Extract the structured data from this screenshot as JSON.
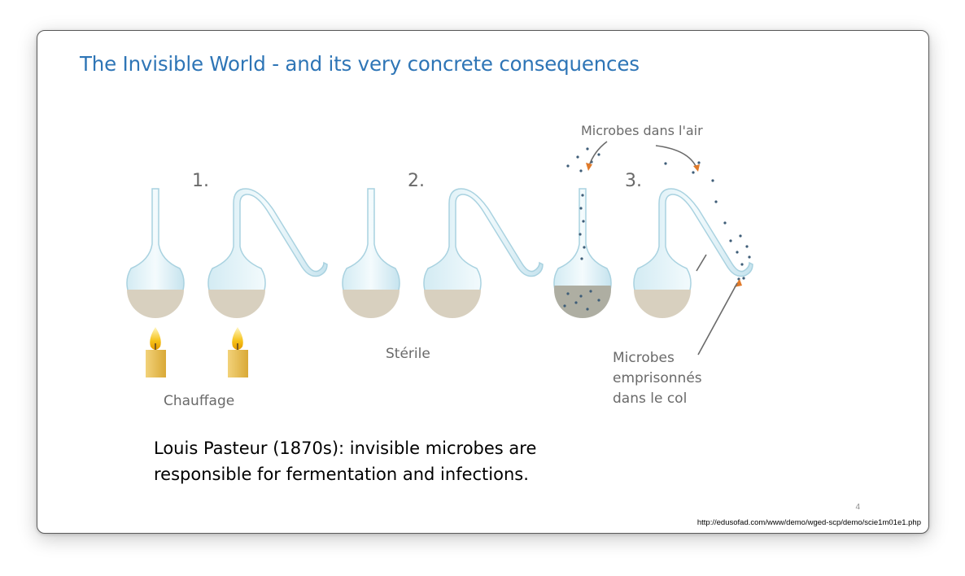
{
  "slide": {
    "title": "The Invisible World - and its very concrete consequences",
    "caption_lines": [
      "Louis Pasteur (1870s): invisible microbes are",
      "responsible for fermentation and infections."
    ],
    "page_number": "4",
    "source_url": "http://edusofad.com/www/demo/wged-scp/demo/scie1m01e1.php"
  },
  "illustration": {
    "step_labels": [
      "1.",
      "2.",
      "3."
    ],
    "chauffage": "Chauffage",
    "sterile": "Stérile",
    "microbes_air": "Microbes dans l'air",
    "microbes_trapped": [
      "Microbes",
      "emprisonnés",
      "dans le col"
    ]
  },
  "colors": {
    "title": "#2e75b6",
    "broth": "#d8d0bf",
    "contaminated_broth": "#aeaea2",
    "flask_outline": "#a9d2e0",
    "flask_fill": "#e8f4f8",
    "flame": "#f6b800",
    "candle": "#e8c25a",
    "microbe": "#3e5d78"
  }
}
